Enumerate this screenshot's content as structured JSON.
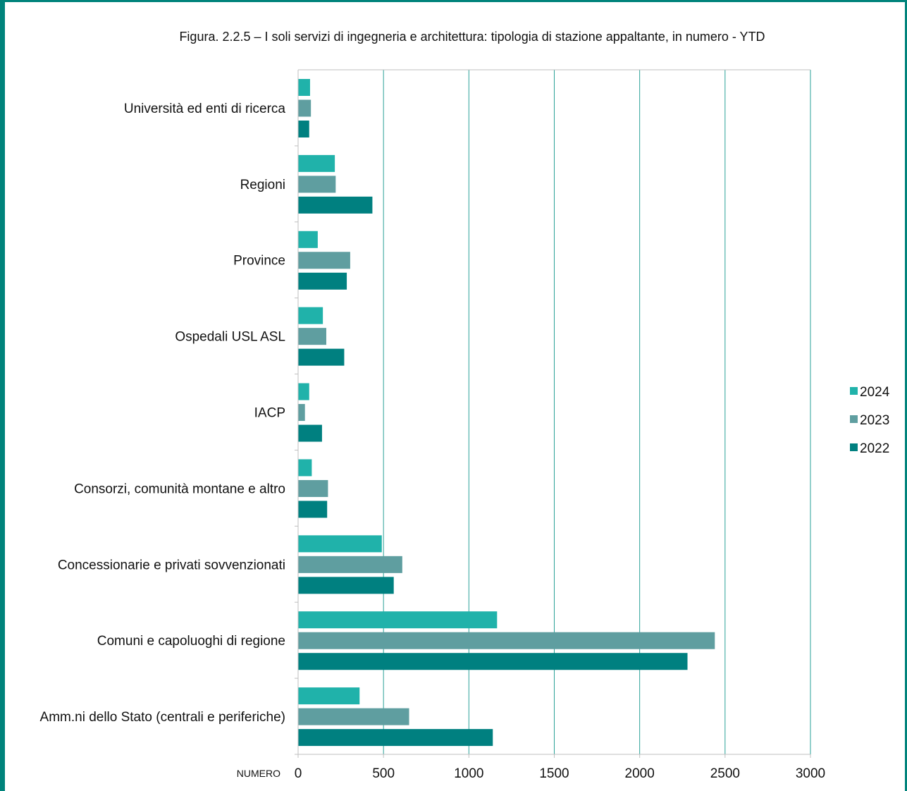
{
  "chart_data": {
    "type": "bar",
    "orientation": "horizontal",
    "title": "Figura. 2.2.5 – I soli servizi di ingegneria e architettura: tipologia di stazione appaltante, in numero - YTD",
    "xlabel": "NUMERO",
    "ylabel": "",
    "xlim": [
      0,
      3000
    ],
    "xticks": [
      0,
      500,
      1000,
      1500,
      2000,
      2500,
      3000
    ],
    "grid": "vertical",
    "legend_position": "right",
    "categories": [
      "Università ed enti di ricerca",
      "Regioni",
      "Province",
      "Ospedali USL ASL",
      "IACP",
      "Consorzi, comunità montane e altro",
      "Concessionarie e privati sovvenzionati",
      "Comuni e capoluoghi di regione",
      "Amm.ni dello Stato (centrali e periferiche)"
    ],
    "series": [
      {
        "name": "2024",
        "color": "#20b2aa",
        "values": [
          70,
          215,
          115,
          145,
          65,
          80,
          490,
          1165,
          360
        ]
      },
      {
        "name": "2023",
        "color": "#5f9ea0",
        "values": [
          75,
          220,
          305,
          165,
          40,
          175,
          610,
          2440,
          650
        ]
      },
      {
        "name": "2022",
        "color": "#008080",
        "values": [
          65,
          435,
          285,
          270,
          140,
          170,
          560,
          2280,
          1140
        ]
      }
    ],
    "colors": {
      "gridline": "#2aa198",
      "axis": "#bfbfbf",
      "frame": "#00837b"
    }
  }
}
